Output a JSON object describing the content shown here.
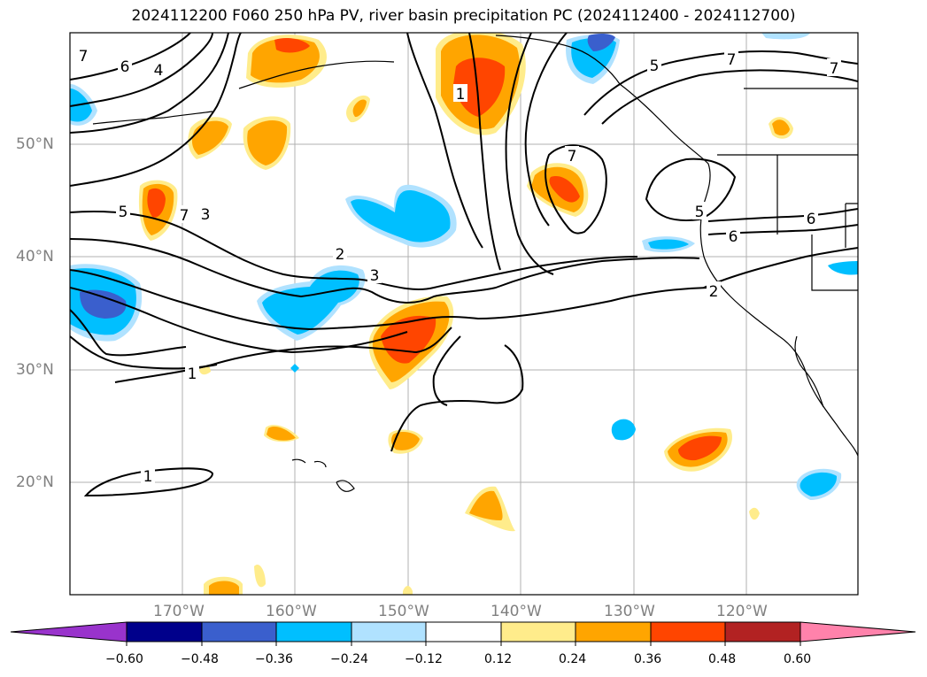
{
  "title": "2024112200 F060 250 hPa PV, river basin precipitation PC (2024112400 - 2024112700)",
  "lat_labels": [
    "50°N",
    "40°N",
    "30°N",
    "20°N"
  ],
  "lon_labels": [
    "170°W",
    "160°W",
    "150°W",
    "140°W",
    "130°W",
    "120°W"
  ],
  "contour_labels": [
    "6",
    "4",
    "7",
    "5",
    "3",
    "2",
    "1",
    "7",
    "5",
    "7",
    "7",
    "5",
    "6",
    "6",
    "2",
    "3",
    "1",
    "7",
    "1"
  ],
  "colorbar": {
    "colors": [
      "#9933cc",
      "#00008b",
      "#3a5fcd",
      "#00bfff",
      "#b0e2ff",
      "#ffffff",
      "#ffec8b",
      "#ffa500",
      "#ff4500",
      "#b22222",
      "#ff82ab"
    ],
    "tick_labels": [
      "−0.60",
      "−0.48",
      "−0.36",
      "−0.24",
      "−0.12",
      "0.12",
      "0.24",
      "0.36",
      "0.48",
      "0.60"
    ]
  }
}
